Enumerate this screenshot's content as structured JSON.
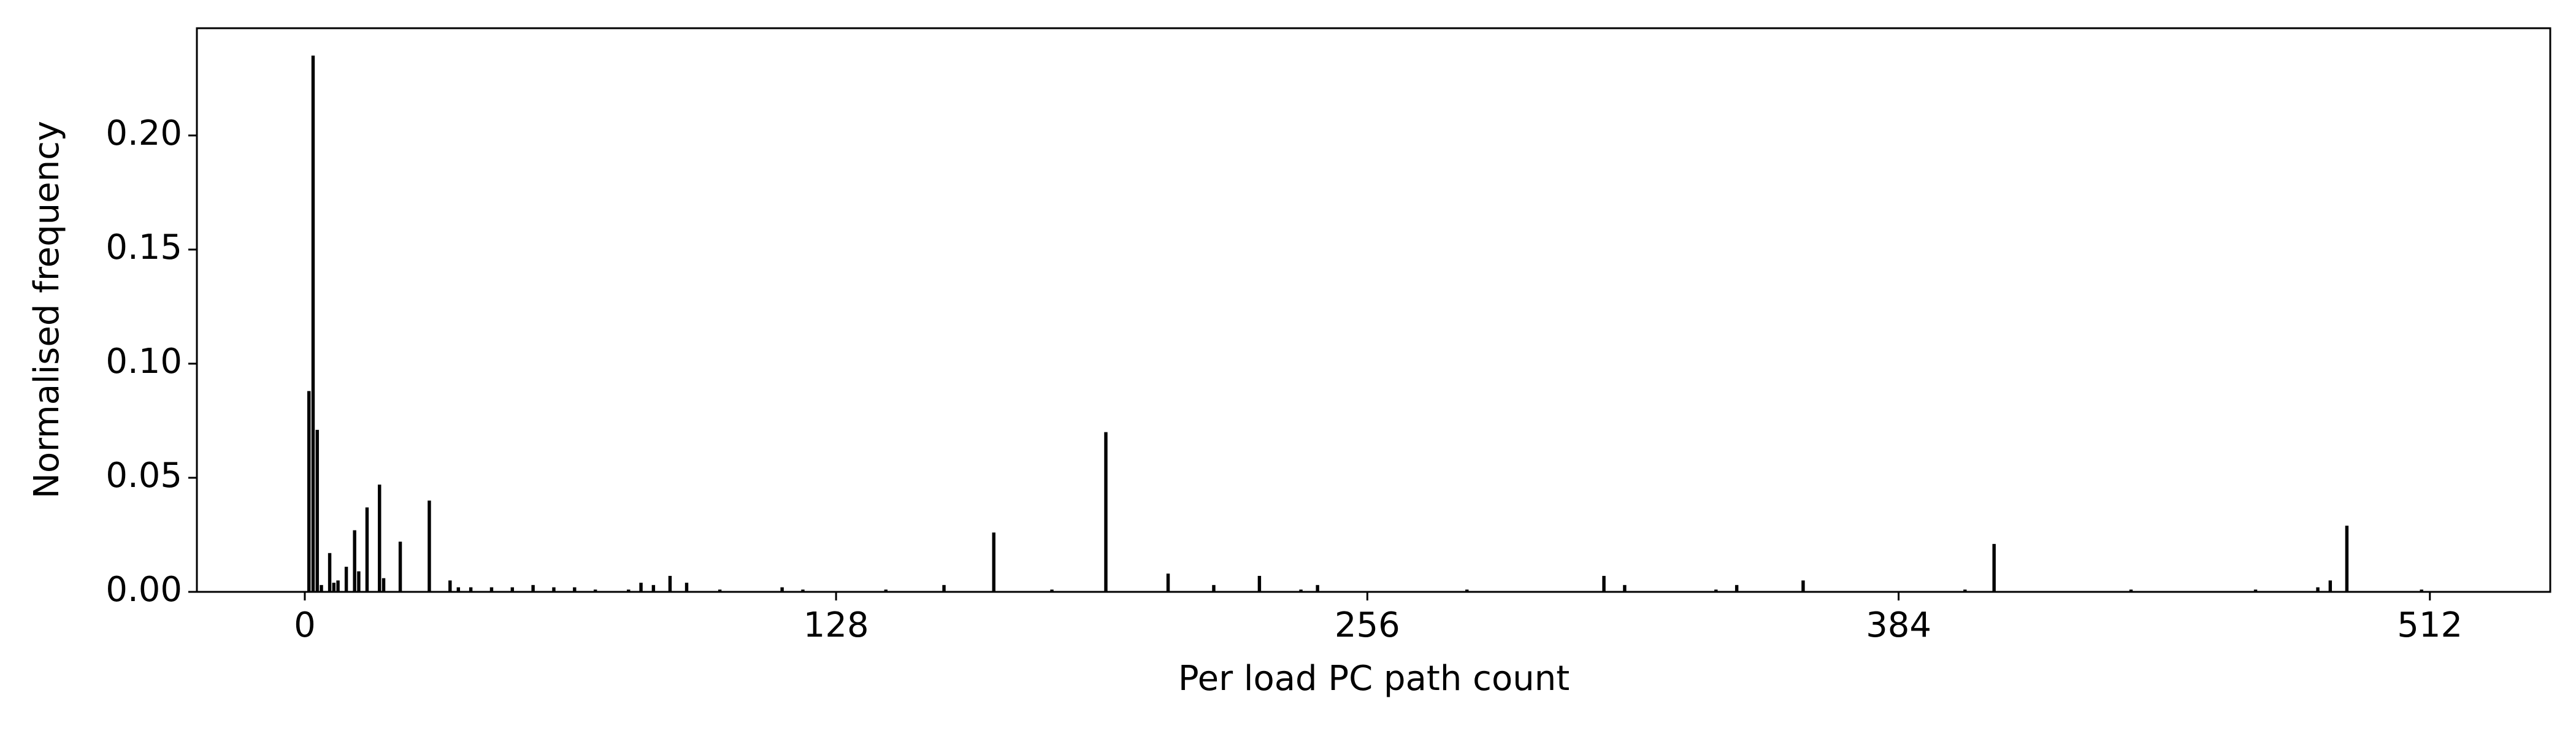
{
  "chart_data": {
    "type": "bar",
    "xlabel": "Per load PC path count",
    "ylabel": "Normalised frequency",
    "color": "#000000",
    "x": [
      1,
      2,
      3,
      4,
      6,
      7,
      8,
      10,
      12,
      13,
      15,
      18,
      19,
      23,
      30,
      35,
      37,
      40,
      45,
      50,
      55,
      60,
      65,
      70,
      78,
      81,
      84,
      88,
      92,
      100,
      115,
      120,
      140,
      154,
      166,
      180,
      193,
      208,
      219,
      230,
      240,
      244,
      280,
      313,
      318,
      340,
      345,
      361,
      400,
      407,
      440,
      470,
      485,
      488,
      492,
      510
    ],
    "values": [
      0.088,
      0.235,
      0.071,
      0.003,
      0.017,
      0.004,
      0.005,
      0.011,
      0.027,
      0.009,
      0.037,
      0.047,
      0.006,
      0.022,
      0.04,
      0.005,
      0.002,
      0.002,
      0.002,
      0.002,
      0.003,
      0.002,
      0.002,
      0.001,
      0.001,
      0.004,
      0.003,
      0.007,
      0.004,
      0.001,
      0.002,
      0.001,
      0.001,
      0.003,
      0.026,
      0.001,
      0.07,
      0.008,
      0.003,
      0.007,
      0.001,
      0.003,
      0.001,
      0.007,
      0.003,
      0.001,
      0.003,
      0.005,
      0.001,
      0.021,
      0.001,
      0.001,
      0.002,
      0.005,
      0.029,
      0.001
    ],
    "xlim": [
      -26,
      541
    ],
    "ylim": [
      0,
      0.247
    ],
    "xticks": [
      0,
      128,
      256,
      384,
      512
    ],
    "yticks": [
      {
        "value": 0,
        "label": "0.00"
      },
      0.05,
      {
        "value": 0.1,
        "label": "0.10"
      },
      0.15,
      {
        "value": 0.2,
        "label": "0.20"
      }
    ]
  }
}
